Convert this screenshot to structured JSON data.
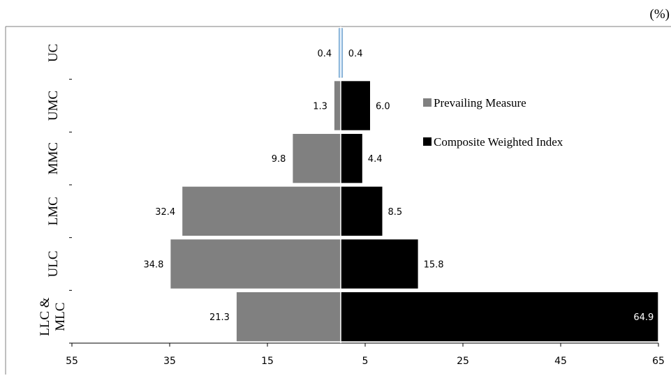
{
  "unit_label": "(%)",
  "colors": {
    "prevailing": "#808080",
    "composite": "#000000",
    "frame": "#7f7f7f",
    "uc_bar": "#9dc3e6"
  },
  "chart_data": {
    "type": "bar",
    "orientation": "horizontal-diverging",
    "categories": [
      "UC",
      "UMC",
      "MMC",
      "LMC",
      "ULC",
      "LLC & MLC"
    ],
    "series": [
      {
        "name": "Prevailing Measure",
        "values": [
          0.4,
          1.3,
          9.8,
          32.4,
          34.8,
          21.3
        ]
      },
      {
        "name": "Composite Weighted Index",
        "values": [
          0.4,
          6.0,
          4.4,
          8.5,
          15.8,
          64.9
        ]
      }
    ],
    "data_labels": {
      "Prevailing Measure": [
        "0.4",
        "1.3",
        "9.8",
        "32.4",
        "34.8",
        "21.3"
      ],
      "Composite Weighted Index": [
        "0.4",
        "6.0",
        "4.4",
        "8.5",
        "15.8",
        "64.9"
      ]
    },
    "x_tick_labels": [
      "55",
      "35",
      "15",
      "5",
      "25",
      "45",
      "65"
    ],
    "xlim": [
      -55,
      65
    ],
    "xlabel": "",
    "ylabel": "",
    "legend": {
      "placement": "right",
      "entries": [
        "Prevailing Measure",
        "Composite Weighted Index"
      ]
    },
    "grid": false
  }
}
